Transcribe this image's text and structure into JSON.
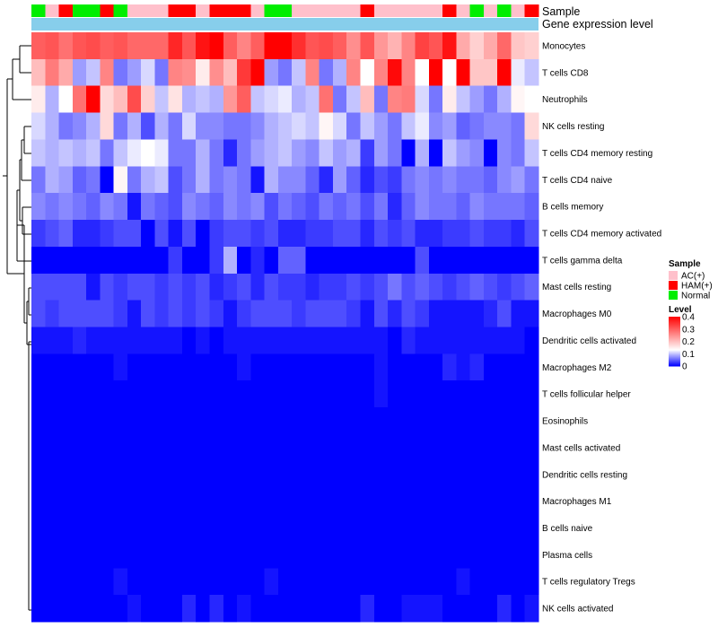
{
  "chart_data": {
    "type": "heatmap",
    "title": "",
    "annotation_tracks": [
      "Sample",
      "Gene expression level"
    ],
    "rows": [
      "Monocytes",
      "T cells CD8",
      "Neutrophils",
      "NK cells resting",
      "T cells CD4 memory resting",
      "T cells CD4 naive",
      "B cells memory",
      "T cells CD4 memory activated",
      "T cells gamma delta",
      "Mast cells resting",
      "Macrophages M0",
      "Dendritic cells activated",
      "Macrophages M2",
      "T cells follicular helper",
      "Eosinophils",
      "Mast cells activated",
      "Dendritic cells resting",
      "Macrophages M1",
      "B cells naive",
      "Plasma cells",
      "T cells regulatory  Tregs",
      "NK cells activated"
    ],
    "sample_groups": [
      "Normal",
      "AC(+)",
      "HAM(+)",
      "Normal",
      "Normal",
      "HAM(+)",
      "Normal",
      "AC(+)",
      "AC(+)",
      "AC(+)",
      "HAM(+)",
      "HAM(+)",
      "AC(+)",
      "HAM(+)",
      "HAM(+)",
      "HAM(+)",
      "AC(+)",
      "Normal",
      "Normal",
      "AC(+)",
      "AC(+)",
      "AC(+)",
      "AC(+)",
      "AC(+)",
      "HAM(+)",
      "AC(+)",
      "AC(+)",
      "AC(+)",
      "AC(+)",
      "AC(+)",
      "HAM(+)",
      "AC(+)",
      "Normal",
      "AC(+)",
      "Normal",
      "AC(+)",
      "HAM(+)"
    ],
    "legend_sample": {
      "title": "Sample",
      "entries": [
        {
          "label": "AC(+)",
          "color": "#ffc0cb"
        },
        {
          "label": "HAM(+)",
          "color": "#ff0000"
        },
        {
          "label": "Normal",
          "color": "#00ee00"
        }
      ]
    },
    "legend_level": {
      "title": "Level",
      "ticks": [
        "0.4",
        "0.3",
        "0.2",
        "0.1",
        "0"
      ],
      "range": [
        0,
        0.4
      ],
      "colors": {
        "low": "#0000ff",
        "mid": "#ffffff",
        "high": "#ff0000",
        "midpoint": 0.13
      }
    },
    "gene_expression_color": "#87ceeb",
    "values": [
      [
        0.3,
        0.31,
        0.28,
        0.31,
        0.32,
        0.3,
        0.31,
        0.29,
        0.29,
        0.29,
        0.36,
        0.31,
        0.38,
        0.4,
        0.3,
        0.26,
        0.3,
        0.4,
        0.4,
        0.35,
        0.31,
        0.32,
        0.3,
        0.25,
        0.31,
        0.24,
        0.21,
        0.26,
        0.33,
        0.31,
        0.38,
        0.22,
        0.18,
        0.22,
        0.29,
        0.19,
        0.18
      ],
      [
        0.2,
        0.27,
        0.22,
        0.08,
        0.1,
        0.26,
        0.06,
        0.08,
        0.11,
        0.06,
        0.26,
        0.25,
        0.15,
        0.25,
        0.2,
        0.34,
        0.41,
        0.08,
        0.06,
        0.1,
        0.26,
        0.06,
        0.09,
        0.26,
        0.13,
        0.26,
        0.39,
        0.26,
        0.13,
        0.4,
        0.13,
        0.4,
        0.19,
        0.19,
        0.4,
        0.12,
        0.1
      ],
      [
        0.15,
        0.09,
        0.13,
        0.28,
        0.4,
        0.17,
        0.2,
        0.32,
        0.18,
        0.1,
        0.16,
        0.09,
        0.1,
        0.09,
        0.24,
        0.3,
        0.1,
        0.11,
        0.12,
        0.09,
        0.1,
        0.28,
        0.06,
        0.1,
        0.2,
        0.06,
        0.26,
        0.27,
        0.11,
        0.06,
        0.15,
        0.1,
        0.08,
        0.06,
        0.09,
        0.14,
        0.13
      ],
      [
        0.11,
        0.09,
        0.06,
        0.07,
        0.09,
        0.17,
        0.06,
        0.09,
        0.04,
        0.09,
        0.06,
        0.11,
        0.07,
        0.07,
        0.06,
        0.06,
        0.07,
        0.09,
        0.1,
        0.11,
        0.1,
        0.14,
        0.11,
        0.06,
        0.1,
        0.08,
        0.06,
        0.1,
        0.12,
        0.07,
        0.08,
        0.05,
        0.06,
        0.07,
        0.07,
        0.06,
        0.17
      ],
      [
        0.1,
        0.09,
        0.1,
        0.09,
        0.1,
        0.06,
        0.1,
        0.12,
        0.13,
        0.12,
        0.06,
        0.06,
        0.09,
        0.06,
        0.02,
        0.06,
        0.08,
        0.09,
        0.1,
        0.08,
        0.07,
        0.1,
        0.08,
        0.09,
        0.03,
        0.08,
        0.06,
        0.0,
        0.09,
        0.0,
        0.1,
        0.08,
        0.07,
        0.0,
        0.07,
        0.06,
        0.1
      ],
      [
        0.06,
        0.09,
        0.08,
        0.05,
        0.06,
        0.0,
        0.14,
        0.06,
        0.09,
        0.1,
        0.04,
        0.06,
        0.09,
        0.06,
        0.07,
        0.06,
        0.01,
        0.09,
        0.07,
        0.07,
        0.05,
        0.02,
        0.08,
        0.05,
        0.02,
        0.04,
        0.03,
        0.06,
        0.07,
        0.06,
        0.07,
        0.06,
        0.06,
        0.05,
        0.07,
        0.08,
        0.06
      ],
      [
        0.07,
        0.06,
        0.07,
        0.06,
        0.05,
        0.07,
        0.06,
        0.01,
        0.06,
        0.05,
        0.04,
        0.07,
        0.06,
        0.05,
        0.07,
        0.06,
        0.07,
        0.04,
        0.06,
        0.05,
        0.04,
        0.06,
        0.05,
        0.06,
        0.04,
        0.06,
        0.02,
        0.05,
        0.07,
        0.06,
        0.06,
        0.05,
        0.07,
        0.06,
        0.06,
        0.06,
        0.05
      ],
      [
        0.03,
        0.04,
        0.05,
        0.02,
        0.02,
        0.03,
        0.04,
        0.04,
        0.0,
        0.04,
        0.01,
        0.04,
        0.0,
        0.03,
        0.04,
        0.04,
        0.03,
        0.04,
        0.02,
        0.02,
        0.03,
        0.03,
        0.04,
        0.04,
        0.02,
        0.04,
        0.03,
        0.04,
        0.02,
        0.02,
        0.03,
        0.03,
        0.04,
        0.03,
        0.03,
        0.02,
        0.04
      ],
      [
        0.0,
        0.0,
        0.0,
        0.0,
        0.0,
        0.0,
        0.0,
        0.0,
        0.0,
        0.0,
        0.03,
        0.0,
        0.0,
        0.03,
        0.09,
        0.0,
        0.02,
        0.0,
        0.05,
        0.05,
        0.0,
        0.0,
        0.0,
        0.0,
        0.0,
        0.0,
        0.0,
        0.0,
        0.04,
        0.0,
        0.0,
        0.0,
        0.0,
        0.0,
        0.0,
        0.0,
        0.0
      ],
      [
        0.04,
        0.04,
        0.04,
        0.04,
        0.01,
        0.04,
        0.03,
        0.04,
        0.04,
        0.03,
        0.04,
        0.03,
        0.04,
        0.02,
        0.03,
        0.04,
        0.02,
        0.04,
        0.03,
        0.03,
        0.02,
        0.03,
        0.03,
        0.04,
        0.03,
        0.04,
        0.06,
        0.04,
        0.05,
        0.04,
        0.03,
        0.04,
        0.05,
        0.04,
        0.03,
        0.04,
        0.05
      ],
      [
        0.04,
        0.03,
        0.04,
        0.04,
        0.04,
        0.04,
        0.03,
        0.01,
        0.04,
        0.03,
        0.04,
        0.03,
        0.04,
        0.03,
        0.01,
        0.03,
        0.04,
        0.04,
        0.04,
        0.03,
        0.04,
        0.04,
        0.04,
        0.03,
        0.01,
        0.04,
        0.02,
        0.04,
        0.03,
        0.01,
        0.01,
        0.01,
        0.01,
        0.02,
        0.04,
        0.01,
        0.01
      ],
      [
        0.01,
        0.01,
        0.01,
        0.02,
        0.01,
        0.01,
        0.01,
        0.01,
        0.01,
        0.01,
        0.01,
        0.0,
        0.01,
        0.0,
        0.01,
        0.01,
        0.01,
        0.01,
        0.01,
        0.01,
        0.01,
        0.01,
        0.01,
        0.01,
        0.01,
        0.01,
        0.0,
        0.02,
        0.01,
        0.01,
        0.01,
        0.01,
        0.01,
        0.01,
        0.01,
        0.01,
        0.0
      ],
      [
        0.0,
        0.0,
        0.0,
        0.0,
        0.0,
        0.0,
        0.01,
        0.0,
        0.0,
        0.0,
        0.0,
        0.0,
        0.0,
        0.0,
        0.0,
        0.01,
        0.0,
        0.0,
        0.0,
        0.0,
        0.0,
        0.0,
        0.0,
        0.0,
        0.0,
        0.01,
        0.0,
        0.0,
        0.0,
        0.0,
        0.02,
        0.01,
        0.02,
        0.0,
        0.0,
        0.0,
        0.0
      ],
      [
        0.0,
        0.0,
        0.0,
        0.0,
        0.0,
        0.0,
        0.0,
        0.0,
        0.0,
        0.0,
        0.0,
        0.0,
        0.0,
        0.0,
        0.0,
        0.0,
        0.0,
        0.0,
        0.0,
        0.0,
        0.0,
        0.0,
        0.0,
        0.0,
        0.0,
        0.01,
        0.0,
        0.0,
        0.0,
        0.0,
        0.0,
        0.0,
        0.0,
        0.0,
        0.0,
        0.0,
        0.0
      ],
      [
        0.0,
        0.0,
        0.0,
        0.0,
        0.0,
        0.0,
        0.0,
        0.0,
        0.0,
        0.0,
        0.0,
        0.0,
        0.0,
        0.0,
        0.0,
        0.0,
        0.0,
        0.0,
        0.0,
        0.0,
        0.0,
        0.0,
        0.0,
        0.0,
        0.0,
        0.0,
        0.0,
        0.0,
        0.0,
        0.0,
        0.0,
        0.0,
        0.0,
        0.0,
        0.0,
        0.0,
        0.0
      ],
      [
        0.0,
        0.0,
        0.0,
        0.0,
        0.0,
        0.0,
        0.0,
        0.0,
        0.0,
        0.0,
        0.0,
        0.0,
        0.0,
        0.0,
        0.0,
        0.0,
        0.0,
        0.0,
        0.0,
        0.0,
        0.0,
        0.0,
        0.0,
        0.0,
        0.0,
        0.0,
        0.0,
        0.0,
        0.0,
        0.0,
        0.0,
        0.0,
        0.0,
        0.0,
        0.0,
        0.0,
        0.0
      ],
      [
        0.0,
        0.0,
        0.0,
        0.0,
        0.0,
        0.0,
        0.0,
        0.0,
        0.0,
        0.0,
        0.0,
        0.0,
        0.0,
        0.0,
        0.0,
        0.0,
        0.0,
        0.0,
        0.0,
        0.0,
        0.0,
        0.0,
        0.0,
        0.0,
        0.0,
        0.0,
        0.0,
        0.0,
        0.0,
        0.0,
        0.0,
        0.0,
        0.0,
        0.0,
        0.0,
        0.0,
        0.0
      ],
      [
        0.0,
        0.0,
        0.0,
        0.0,
        0.0,
        0.0,
        0.0,
        0.0,
        0.0,
        0.0,
        0.0,
        0.0,
        0.0,
        0.0,
        0.0,
        0.0,
        0.0,
        0.0,
        0.0,
        0.0,
        0.0,
        0.0,
        0.0,
        0.0,
        0.0,
        0.0,
        0.0,
        0.0,
        0.0,
        0.0,
        0.0,
        0.0,
        0.0,
        0.0,
        0.0,
        0.0,
        0.0
      ],
      [
        0.0,
        0.0,
        0.0,
        0.0,
        0.0,
        0.0,
        0.0,
        0.0,
        0.0,
        0.0,
        0.0,
        0.0,
        0.0,
        0.0,
        0.0,
        0.0,
        0.0,
        0.0,
        0.0,
        0.0,
        0.0,
        0.0,
        0.0,
        0.0,
        0.0,
        0.0,
        0.0,
        0.0,
        0.0,
        0.0,
        0.0,
        0.0,
        0.0,
        0.0,
        0.0,
        0.0,
        0.0
      ],
      [
        0.0,
        0.0,
        0.0,
        0.0,
        0.0,
        0.0,
        0.0,
        0.0,
        0.0,
        0.0,
        0.0,
        0.0,
        0.0,
        0.0,
        0.0,
        0.0,
        0.0,
        0.0,
        0.0,
        0.0,
        0.0,
        0.0,
        0.0,
        0.0,
        0.0,
        0.0,
        0.0,
        0.0,
        0.0,
        0.0,
        0.0,
        0.0,
        0.0,
        0.0,
        0.0,
        0.0,
        0.0
      ],
      [
        0.0,
        0.0,
        0.0,
        0.0,
        0.0,
        0.0,
        0.01,
        0.0,
        0.0,
        0.0,
        0.0,
        0.0,
        0.0,
        0.0,
        0.0,
        0.0,
        0.0,
        0.01,
        0.0,
        0.0,
        0.0,
        0.0,
        0.0,
        0.0,
        0.0,
        0.0,
        0.0,
        0.0,
        0.0,
        0.0,
        0.0,
        0.01,
        0.0,
        0.0,
        0.0,
        0.0,
        0.0
      ],
      [
        0.0,
        0.0,
        0.0,
        0.0,
        0.0,
        0.0,
        0.0,
        0.01,
        0.0,
        0.0,
        0.0,
        0.02,
        0.0,
        0.02,
        0.0,
        0.01,
        0.0,
        0.0,
        0.0,
        0.0,
        0.0,
        0.0,
        0.0,
        0.0,
        0.02,
        0.0,
        0.0,
        0.01,
        0.01,
        0.01,
        0.0,
        0.0,
        0.0,
        0.0,
        0.02,
        0.0,
        0.01
      ]
    ]
  }
}
